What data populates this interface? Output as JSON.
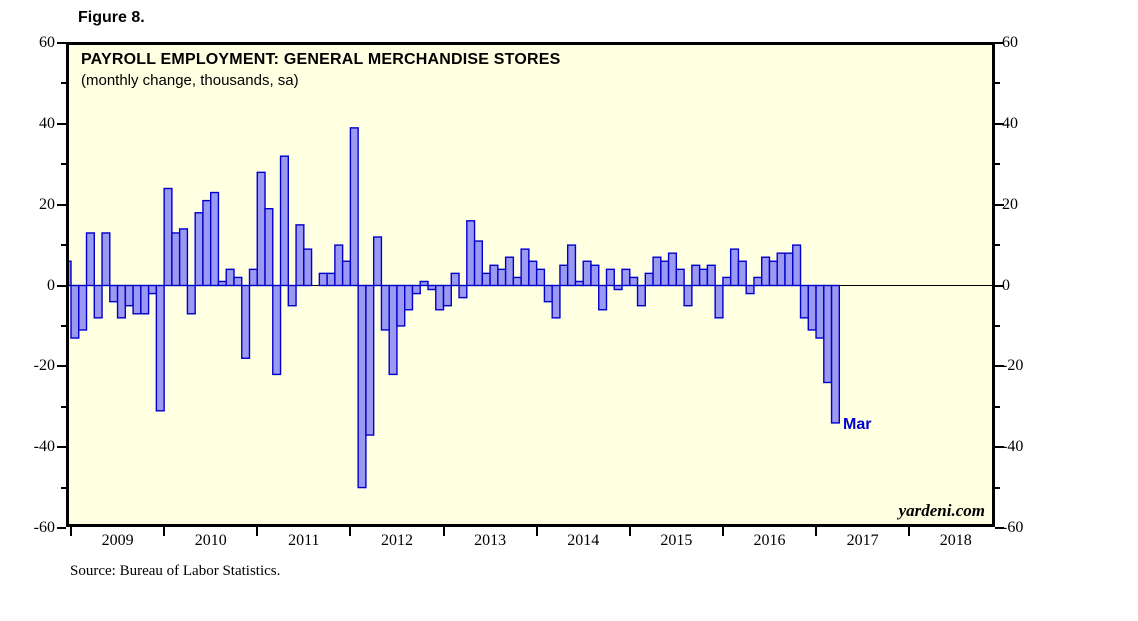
{
  "figure_label": "Figure 8.",
  "chart": {
    "title": "PAYROLL EMPLOYMENT: GENERAL MERCHANDISE STORES",
    "subtitle": "(monthly change, thousands, sa)",
    "watermark": "yardeni.com",
    "annotation": {
      "text": "Mar",
      "color": "#0000CC"
    },
    "source_note": "Source: Bureau of Labor Statistics.",
    "colors": {
      "plot_bg": "#FFFFE2",
      "bar_fill": "#9B99F0",
      "bar_stroke": "#0000CD",
      "axis": "#000000"
    }
  },
  "chart_data": {
    "type": "bar",
    "title": "PAYROLL EMPLOYMENT: GENERAL MERCHANDISE STORES",
    "subtitle": "(monthly change, thousands, sa)",
    "unit": "thousands, seasonally adjusted, monthly change",
    "ylim": [
      -60,
      60
    ],
    "yticks_major": [
      60,
      40,
      20,
      0,
      -20,
      -40,
      -60
    ],
    "yticks_minor": [
      50,
      30,
      10,
      -10,
      -30,
      -50
    ],
    "x_year_labels": [
      "2009",
      "2010",
      "2011",
      "2012",
      "2013",
      "2014",
      "2015",
      "2016",
      "2017",
      "2018"
    ],
    "legend": "none",
    "grid": "off",
    "last_point_label": {
      "month": "2017-03",
      "label": "Mar",
      "value": -34
    },
    "series": [
      {
        "name": "Monthly change (thousands)",
        "data_by_year": [
          {
            "year": 2008,
            "first_month": 12,
            "values": [
              6
            ]
          },
          {
            "year": 2009,
            "first_month": 1,
            "values": [
              -13,
              -11,
              13,
              -8,
              13,
              -4,
              -8,
              -5,
              -7,
              -7,
              -2,
              -31
            ]
          },
          {
            "year": 2010,
            "first_month": 1,
            "values": [
              24,
              13,
              14,
              -7,
              18,
              21,
              23,
              1,
              4,
              2,
              -18,
              4
            ]
          },
          {
            "year": 2011,
            "first_month": 1,
            "values": [
              28,
              19,
              -22,
              32,
              -5,
              15,
              9,
              0,
              3,
              3,
              10,
              6
            ]
          },
          {
            "year": 2012,
            "first_month": 1,
            "values": [
              39,
              -50,
              -37,
              12,
              -11,
              -22,
              -10,
              -6,
              -2,
              1,
              -1,
              -6
            ]
          },
          {
            "year": 2013,
            "first_month": 1,
            "values": [
              -5,
              3,
              -3,
              16,
              11,
              3,
              5,
              4,
              7,
              2,
              9,
              6
            ]
          },
          {
            "year": 2014,
            "first_month": 1,
            "values": [
              4,
              -4,
              -8,
              5,
              10,
              1,
              6,
              5,
              -6,
              4,
              -1,
              4
            ]
          },
          {
            "year": 2015,
            "first_month": 1,
            "values": [
              2,
              -5,
              3,
              7,
              6,
              8,
              4,
              -5,
              5,
              4,
              5,
              -8
            ]
          },
          {
            "year": 2016,
            "first_month": 1,
            "values": [
              2,
              9,
              6,
              -2,
              2,
              7,
              6,
              8,
              8,
              10,
              -8,
              -11
            ]
          },
          {
            "year": 2017,
            "first_month": 1,
            "values": [
              -13,
              -24,
              -34
            ]
          }
        ]
      }
    ]
  }
}
